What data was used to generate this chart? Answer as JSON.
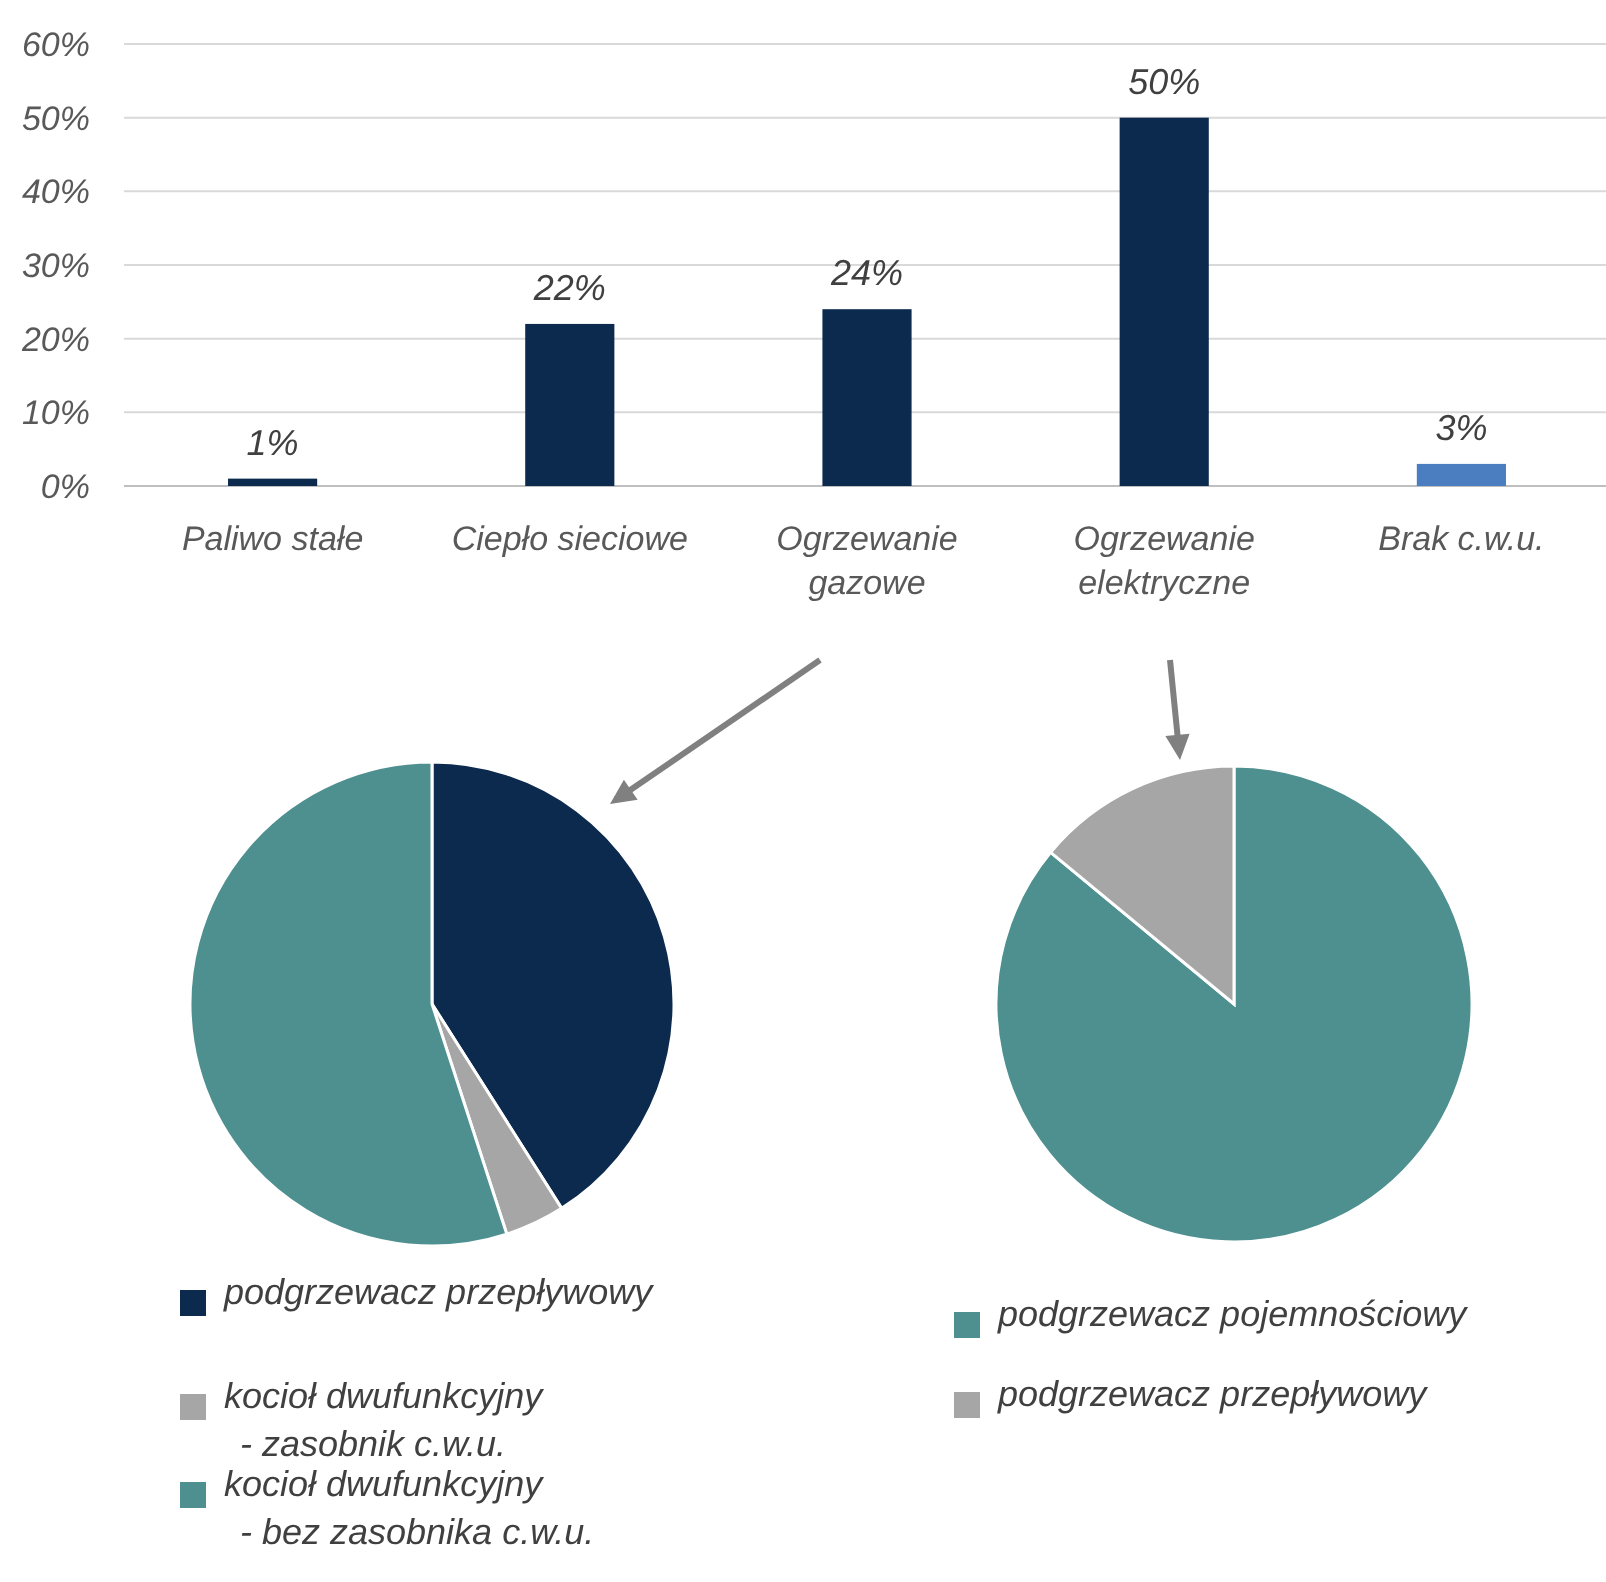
{
  "chart_data": [
    {
      "type": "bar",
      "categories": [
        "Paliwo stałe",
        "Ciepło sieciowe",
        "Ogrzewanie\ngazowe",
        "Ogrzewanie\nelektryczne",
        "Brak c.w.u."
      ],
      "values": [
        1,
        22,
        24,
        50,
        3
      ],
      "colors": [
        "#0c2a4d",
        "#0c2a4d",
        "#0c2a4d",
        "#0c2a4d",
        "#4a7ec0"
      ],
      "value_labels": [
        "1%",
        "22%",
        "24%",
        "50%",
        "3%"
      ],
      "ylim": [
        0,
        60
      ],
      "yticks": [
        {
          "value": 0,
          "label": "0%"
        },
        {
          "value": 10,
          "label": "10%"
        },
        {
          "value": 20,
          "label": "20%"
        },
        {
          "value": 30,
          "label": "30%"
        },
        {
          "value": 40,
          "label": "40%"
        },
        {
          "value": 50,
          "label": "50%"
        },
        {
          "value": 60,
          "label": "60%"
        }
      ],
      "grid": "y"
    },
    {
      "type": "pie",
      "categories": [
        "podgrzewacz przepływowy",
        "kocioł dwufunkcyjny\n- zasobnik c.w.u.",
        "kocioł dwufunkcyjny\n- bez zasobnika c.w.u."
      ],
      "values": [
        41,
        4,
        55
      ],
      "colors": [
        "#0c2a4d",
        "#a6a6a6",
        "#4e8f8f"
      ],
      "legend": "bottom"
    },
    {
      "type": "pie",
      "categories": [
        "podgrzewacz pojemnościowy",
        "podgrzewacz przepływowy"
      ],
      "values": [
        86,
        14
      ],
      "colors": [
        "#4e8f8f",
        "#a6a6a6"
      ],
      "legend": "bottom"
    }
  ]
}
